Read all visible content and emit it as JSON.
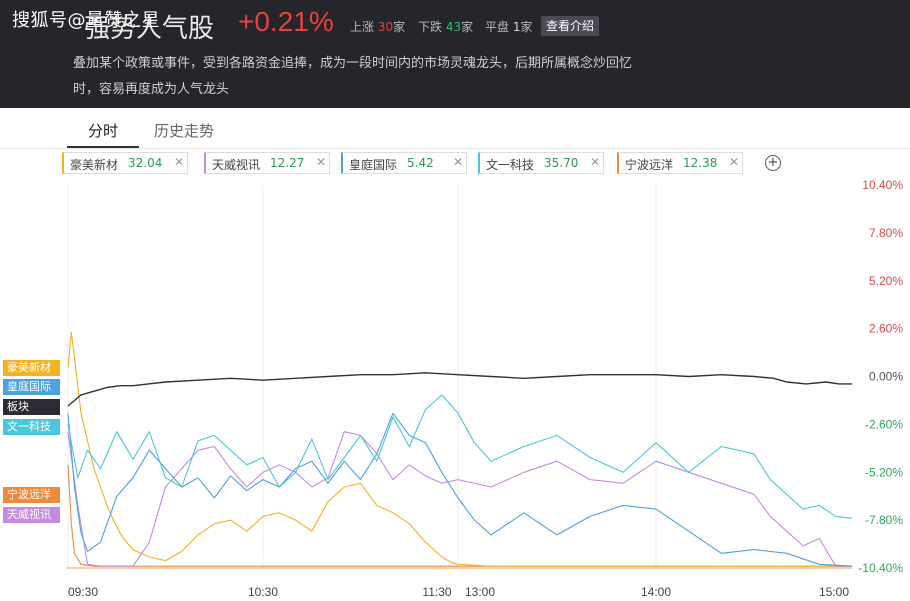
{
  "header": {
    "watermark": "搜狐号@量赞之星",
    "title": "强势人气股",
    "change": "+0.21%",
    "up_label": "上涨",
    "up_count": "30",
    "up_unit": "家",
    "down_label": "下跌",
    "down_count": "43",
    "down_unit": "家",
    "flat_label": "平盘",
    "flat_count": "1",
    "flat_unit": "家",
    "intro_button": "查看介绍",
    "description_line1": "叠加某个政策或事件，受到各路资金追捧，成为一段时间内的市场灵魂龙头，后期所属概念炒回忆",
    "description_line2": "时，容易再度成为人气龙头"
  },
  "tabs": [
    {
      "label": "分时",
      "active": true
    },
    {
      "label": "历史走势",
      "active": false
    }
  ],
  "stocks": [
    {
      "name": "豪美新材",
      "price": "32.04",
      "color": "#f0b323"
    },
    {
      "name": "天威视讯",
      "price": "12.27",
      "color": "#c58be0"
    },
    {
      "name": "皇庭国际",
      "price": "5.42",
      "color": "#4aa3df"
    },
    {
      "name": "文一科技",
      "price": "35.70",
      "color": "#4cc7d9"
    },
    {
      "name": "宁波远洋",
      "price": "12.38",
      "color": "#f08a3c"
    }
  ],
  "add_icon": "plus-circle-icon",
  "close_icon": "close-icon",
  "side_labels": [
    {
      "name": "豪美新材",
      "color": "#f0b323"
    },
    {
      "name": "皇庭国际",
      "color": "#4aa3df"
    },
    {
      "name": "板块",
      "color": "#2b2b33"
    },
    {
      "name": "文一科技",
      "color": "#4cc7d9"
    },
    {
      "name": "宁波远洋",
      "color": "#f08a3c"
    },
    {
      "name": "天威视讯",
      "color": "#c58be0"
    }
  ],
  "chart_data": {
    "type": "line",
    "x_ticks": [
      "09:30",
      "10:30",
      "11:30",
      "13:00",
      "14:00",
      "15:00"
    ],
    "y_ticks": [
      "10.40%",
      "7.80%",
      "5.20%",
      "2.60%",
      "0.00%",
      "-2.60%",
      "-5.20%",
      "-7.80%",
      "-10.40%"
    ],
    "ylim": [
      -10.4,
      10.4
    ],
    "x_unit": "minutes since open (0-240)",
    "series": [
      {
        "name": "板块",
        "color": "#333333",
        "x": [
          0,
          4,
          8,
          12,
          16,
          20,
          30,
          40,
          50,
          60,
          70,
          80,
          90,
          100,
          110,
          120,
          130,
          140,
          150,
          160,
          170,
          180,
          190,
          200,
          210,
          216,
          220,
          226,
          232,
          236,
          240
        ],
        "y": [
          -1.6,
          -1.0,
          -0.8,
          -0.6,
          -0.5,
          -0.5,
          -0.3,
          -0.2,
          -0.1,
          -0.2,
          -0.1,
          0.0,
          0.1,
          0.1,
          0.2,
          0.1,
          0.0,
          -0.1,
          0.0,
          0.1,
          0.1,
          0.1,
          0.0,
          0.1,
          0.0,
          -0.1,
          -0.3,
          -0.4,
          -0.3,
          -0.4,
          -0.4
        ]
      },
      {
        "name": "豪美新材",
        "color": "#f0b323",
        "x": [
          0,
          1,
          2,
          4,
          6,
          8,
          10,
          12,
          14,
          16,
          18,
          20,
          25,
          30,
          35,
          40,
          45,
          50,
          55,
          60,
          65,
          70,
          75,
          80,
          85,
          90,
          95,
          100,
          105,
          110,
          115,
          118,
          120,
          130,
          140,
          160,
          180,
          200,
          220,
          240
        ],
        "y": [
          0.5,
          2.4,
          1.0,
          -2.0,
          -3.5,
          -5.0,
          -6.0,
          -7.0,
          -7.8,
          -8.5,
          -9.0,
          -9.4,
          -9.8,
          -10.0,
          -9.5,
          -8.6,
          -8.0,
          -7.8,
          -8.4,
          -7.6,
          -7.4,
          -7.8,
          -8.4,
          -6.8,
          -6.0,
          -5.8,
          -7.0,
          -7.4,
          -8.0,
          -9.0,
          -9.8,
          -10.1,
          -10.2,
          -10.3,
          -10.3,
          -10.3,
          -10.3,
          -10.3,
          -10.3,
          -10.3
        ]
      },
      {
        "name": "天威视讯",
        "color": "#c58be0",
        "x": [
          0,
          3,
          6,
          10,
          15,
          20,
          25,
          30,
          35,
          40,
          45,
          50,
          55,
          60,
          65,
          70,
          75,
          80,
          85,
          90,
          95,
          100,
          105,
          110,
          115,
          120,
          130,
          140,
          150,
          160,
          170,
          180,
          190,
          200,
          210,
          215,
          220,
          225,
          230,
          235,
          240
        ],
        "y": [
          -3.0,
          -7.0,
          -10.2,
          -10.3,
          -10.3,
          -10.3,
          -9.0,
          -6.0,
          -5.0,
          -4.0,
          -3.8,
          -5.0,
          -6.0,
          -5.2,
          -4.8,
          -5.2,
          -6.0,
          -5.5,
          -3.0,
          -3.2,
          -4.2,
          -5.6,
          -4.8,
          -5.4,
          -5.8,
          -5.6,
          -6.0,
          -5.2,
          -4.6,
          -5.6,
          -5.8,
          -4.6,
          -5.2,
          -5.8,
          -6.4,
          -7.6,
          -8.4,
          -9.2,
          -8.8,
          -10.3,
          -10.3
        ]
      },
      {
        "name": "皇庭国际",
        "color": "#4aa3df",
        "x": [
          0,
          2,
          4,
          6,
          10,
          15,
          20,
          25,
          30,
          35,
          40,
          45,
          50,
          55,
          60,
          65,
          70,
          75,
          80,
          85,
          90,
          95,
          100,
          105,
          110,
          115,
          120,
          125,
          130,
          140,
          150,
          160,
          170,
          180,
          190,
          200,
          210,
          220,
          230,
          240
        ],
        "y": [
          -2.0,
          -6.0,
          -8.5,
          -9.5,
          -9.0,
          -6.5,
          -5.5,
          -4.0,
          -5.0,
          -6.0,
          -5.5,
          -6.6,
          -5.4,
          -6.2,
          -5.6,
          -6.0,
          -5.0,
          -4.6,
          -5.8,
          -4.6,
          -5.6,
          -4.2,
          -2.0,
          -3.2,
          -3.6,
          -5.2,
          -6.6,
          -7.8,
          -8.6,
          -7.4,
          -8.6,
          -7.6,
          -7.0,
          -7.2,
          -8.4,
          -9.6,
          -9.4,
          -9.6,
          -10.2,
          -10.3
        ]
      },
      {
        "name": "文一科技",
        "color": "#4cc7d9",
        "x": [
          0,
          3,
          6,
          10,
          15,
          20,
          25,
          30,
          35,
          40,
          45,
          50,
          55,
          60,
          65,
          70,
          75,
          80,
          85,
          90,
          95,
          100,
          105,
          110,
          115,
          120,
          125,
          130,
          140,
          150,
          160,
          170,
          180,
          190,
          200,
          210,
          215,
          220,
          225,
          230,
          235,
          240
        ],
        "y": [
          -2.6,
          -5.5,
          -4.0,
          -5.0,
          -3.0,
          -4.5,
          -3.0,
          -5.5,
          -6.0,
          -3.5,
          -3.2,
          -4.0,
          -4.8,
          -4.4,
          -6.0,
          -5.2,
          -3.4,
          -5.6,
          -4.4,
          -3.2,
          -4.6,
          -2.2,
          -3.8,
          -1.8,
          -1.0,
          -2.0,
          -3.6,
          -4.6,
          -3.8,
          -3.2,
          -4.4,
          -5.2,
          -3.6,
          -5.2,
          -3.8,
          -4.2,
          -5.6,
          -6.4,
          -7.2,
          -7.0,
          -7.6,
          -7.7
        ]
      },
      {
        "name": "宁波远洋",
        "color": "#f08a3c",
        "x": [
          0,
          1,
          2,
          4,
          8,
          20,
          60,
          120,
          180,
          240
        ],
        "y": [
          -4.8,
          -8.0,
          -9.6,
          -10.2,
          -10.3,
          -10.3,
          -10.3,
          -10.3,
          -10.3,
          -10.3
        ]
      }
    ]
  }
}
